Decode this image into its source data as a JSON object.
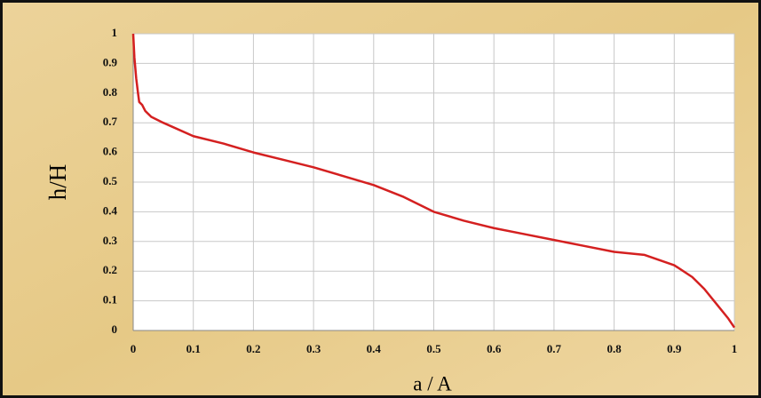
{
  "chart_data": {
    "type": "line",
    "xlabel": "a / A",
    "ylabel": "h/H",
    "x": [
      0,
      0.002,
      0.005,
      0.008,
      0.01,
      0.015,
      0.02,
      0.03,
      0.05,
      0.1,
      0.15,
      0.2,
      0.25,
      0.3,
      0.35,
      0.4,
      0.45,
      0.5,
      0.55,
      0.6,
      0.65,
      0.7,
      0.75,
      0.8,
      0.85,
      0.9,
      0.93,
      0.95,
      0.97,
      0.99,
      1
    ],
    "values": [
      1,
      0.92,
      0.85,
      0.8,
      0.77,
      0.76,
      0.74,
      0.72,
      0.7,
      0.655,
      0.63,
      0.6,
      0.575,
      0.55,
      0.52,
      0.49,
      0.45,
      0.4,
      0.37,
      0.345,
      0.325,
      0.305,
      0.285,
      0.265,
      0.255,
      0.22,
      0.18,
      0.14,
      0.09,
      0.04,
      0.01
    ],
    "color": "#d42020",
    "xlim": [
      0,
      1
    ],
    "xticks": [
      0,
      0.1,
      0.2,
      0.3,
      0.4,
      0.5,
      0.6,
      0.7,
      0.8,
      0.9,
      1
    ],
    "ylim": [
      0,
      1
    ],
    "yticks": [
      0,
      0.1,
      0.2,
      0.3,
      0.4,
      0.5,
      0.6,
      0.7,
      0.8,
      0.9,
      1
    ],
    "grid": true
  }
}
